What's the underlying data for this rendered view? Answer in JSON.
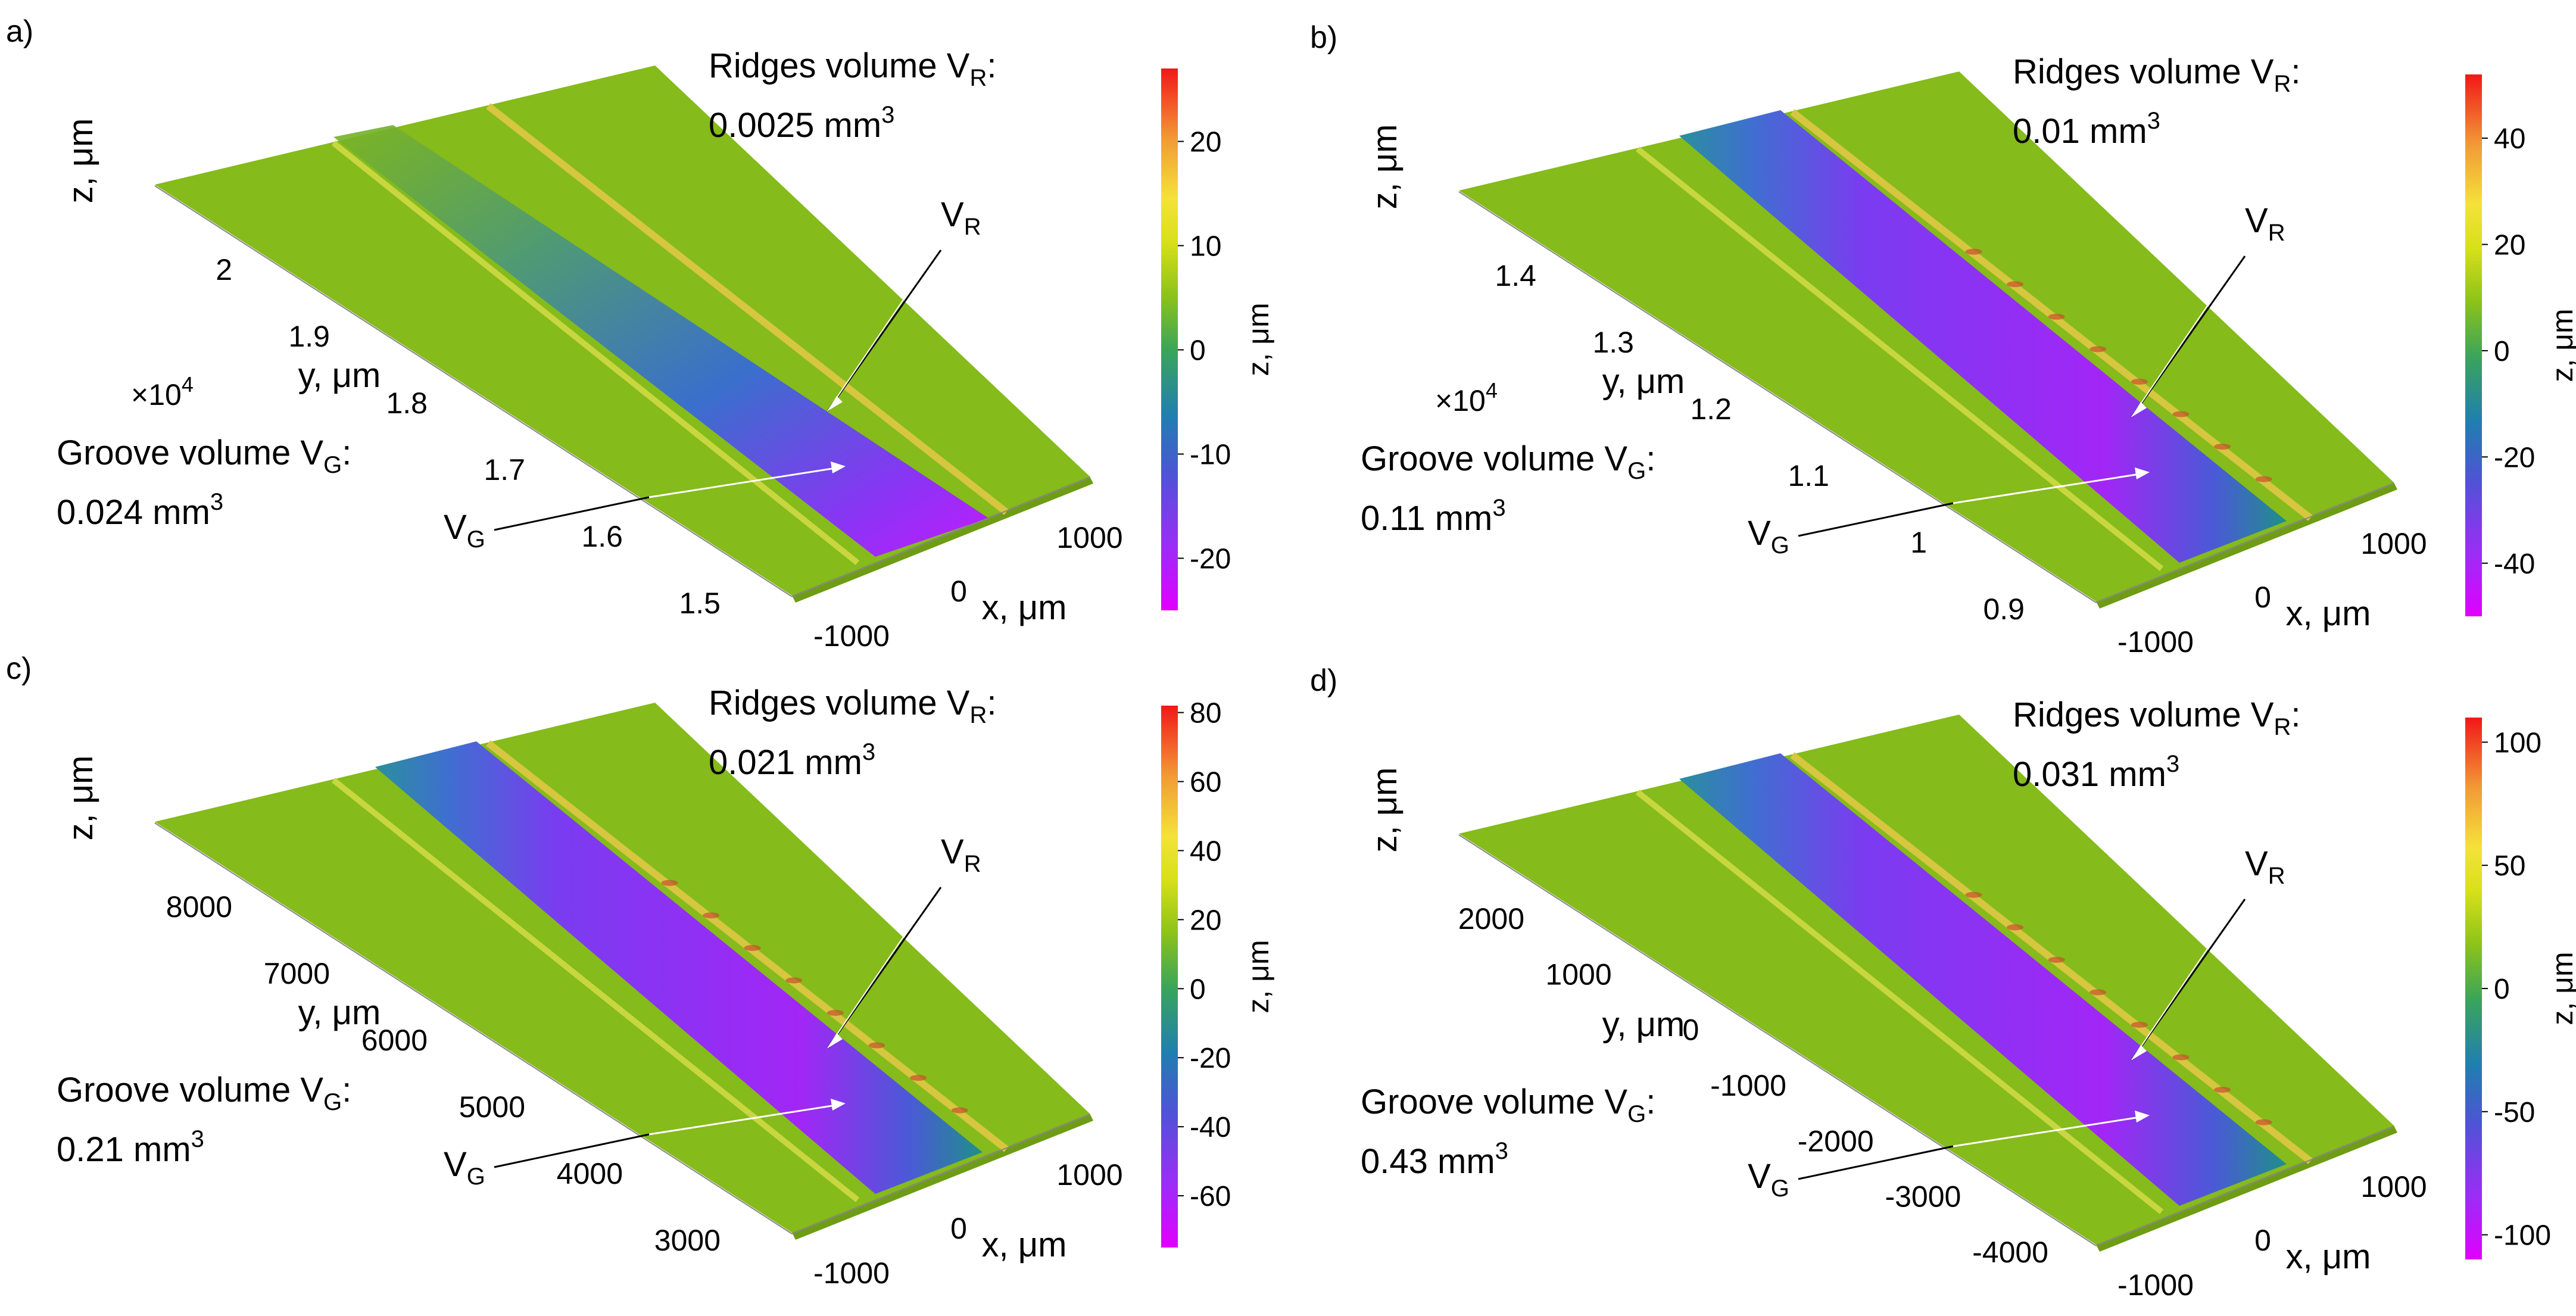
{
  "chart_data": [
    {
      "type": "surface",
      "panel": "a)",
      "title": "",
      "xlabel": "x, μm",
      "ylabel": "y, μm",
      "zlabel": "z, μm",
      "colorbar_label": "z, μm",
      "y_exponent": "×10",
      "y_exponent_power": "4",
      "x_ticks": [
        "-1000",
        "0",
        "1000"
      ],
      "y_ticks": [
        "2",
        "1.9",
        "1.8",
        "1.7",
        "1.6",
        "1.5"
      ],
      "colorbar_ticks": [
        20,
        10,
        0,
        -10,
        -20
      ],
      "colorbar_range": [
        -25,
        27
      ],
      "ridges_label": "Ridges volume V",
      "ridges_value": "0.0025 mm",
      "groove_label": "Groove volume V",
      "groove_value": "0.024 mm",
      "groove_volume_mm3": 0.024,
      "ridges_volume_mm3": 0.0025,
      "callout_vr": "V",
      "callout_vg": "V",
      "sub_r": "R",
      "sub_g": "G",
      "cube": "3"
    },
    {
      "type": "surface",
      "panel": "b)",
      "title": "",
      "xlabel": "x, μm",
      "ylabel": "y, μm",
      "zlabel": "z, μm",
      "colorbar_label": "z, μm",
      "y_exponent": "×10",
      "y_exponent_power": "4",
      "x_ticks": [
        "-1000",
        "0",
        "1000"
      ],
      "y_ticks": [
        "1.4",
        "1.3",
        "1.2",
        "1.1",
        "1",
        "0.9"
      ],
      "colorbar_ticks": [
        40,
        20,
        0,
        -20,
        -40
      ],
      "colorbar_range": [
        -50,
        52
      ],
      "ridges_label": "Ridges volume V",
      "ridges_value": "0.01 mm",
      "groove_label": "Groove volume V",
      "groove_value": "0.11 mm",
      "groove_volume_mm3": 0.11,
      "ridges_volume_mm3": 0.01,
      "callout_vr": "V",
      "callout_vg": "V",
      "sub_r": "R",
      "sub_g": "G",
      "cube": "3"
    },
    {
      "type": "surface",
      "panel": "c)",
      "title": "",
      "xlabel": "x, μm",
      "ylabel": "y, μm",
      "zlabel": "z, μm",
      "colorbar_label": "z, μm",
      "y_exponent": "",
      "y_exponent_power": "",
      "x_ticks": [
        "-1000",
        "0",
        "1000"
      ],
      "y_ticks": [
        "8000",
        "7000",
        "6000",
        "5000",
        "4000",
        "3000"
      ],
      "colorbar_ticks": [
        80,
        60,
        40,
        20,
        0,
        -20,
        -40,
        -60
      ],
      "colorbar_range": [
        -75,
        82
      ],
      "ridges_label": "Ridges volume V",
      "ridges_value": "0.021 mm",
      "groove_label": "Groove volume V",
      "groove_value": "0.21 mm",
      "groove_volume_mm3": 0.21,
      "ridges_volume_mm3": 0.021,
      "callout_vr": "V",
      "callout_vg": "V",
      "sub_r": "R",
      "sub_g": "G",
      "cube": "3"
    },
    {
      "type": "surface",
      "panel": "d)",
      "title": "",
      "xlabel": "x, μm",
      "ylabel": "y, μm",
      "zlabel": "z, μm",
      "colorbar_label": "z, μm",
      "y_exponent": "",
      "y_exponent_power": "",
      "x_ticks": [
        "-1000",
        "0",
        "1000"
      ],
      "y_ticks": [
        "2000",
        "1000",
        "0",
        "-1000",
        "-2000",
        "-3000",
        "-4000"
      ],
      "colorbar_ticks": [
        100,
        50,
        0,
        -50,
        -100
      ],
      "colorbar_range": [
        -110,
        110
      ],
      "ridges_label": "Ridges volume V",
      "ridges_value": "0.031 mm",
      "groove_label": "Groove volume V",
      "groove_value": "0.43 mm",
      "groove_volume_mm3": 0.43,
      "ridges_volume_mm3": 0.031,
      "callout_vr": "V",
      "callout_vg": "V",
      "sub_r": "R",
      "sub_g": "G",
      "cube": "3"
    }
  ]
}
